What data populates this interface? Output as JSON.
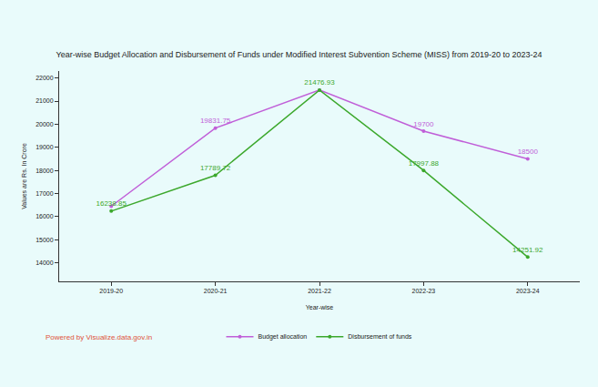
{
  "chart_data": {
    "type": "line",
    "title": "Year-wise Budget Allocation and Disbursement of Funds under Modified Interest Subvention Scheme (MISS) from 2019-20 to 2023-24",
    "x_label": "Year-wise",
    "y_label": "Values are Rs. In Crore",
    "categories": [
      "2019-20",
      "2020-21",
      "2021-22",
      "2022-23",
      "2023-24"
    ],
    "series": [
      {
        "name": "Budget allocation",
        "color": "#c05fd8",
        "marker": "circle",
        "values": [
          16450,
          19831.75,
          21476.93,
          19700,
          18500
        ],
        "value_labels": [
          null,
          "19831.75",
          null,
          "19700",
          "18500"
        ]
      },
      {
        "name": "Disbursement of funds",
        "color": "#3ca82c",
        "marker": "circle",
        "values": [
          16238.85,
          17789.72,
          21476.93,
          17997.88,
          14251.92
        ],
        "value_labels": [
          "16238.85",
          "17789.72",
          "21476.93",
          "17997.88",
          "14251.92"
        ]
      }
    ],
    "ylim": [
      13200,
      22300
    ],
    "yticks": [
      14000,
      15000,
      16000,
      17000,
      18000,
      19000,
      20000,
      21000,
      22000
    ],
    "grid": false,
    "legend": "bottom",
    "data_labels": true,
    "annotations": [
      "Powered by Visualize.data.gov.in"
    ]
  }
}
